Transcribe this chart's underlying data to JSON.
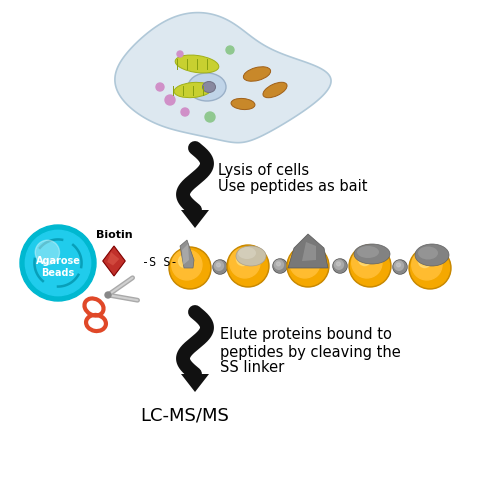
{
  "bg_color": "#ffffff",
  "arrow1_text_line1": "Lysis of cells",
  "arrow1_text_line2": "Use peptides as bait",
  "arrow2_text_line1": "Elute proteins bound to",
  "arrow2_text_line2": "peptides by cleaving the",
  "arrow2_text_line3": "SS linker",
  "lcms_text": "LC-MS/MS",
  "biotin_label": "Biotin",
  "agarose_label": "Agarose\nBeads",
  "ss_text": "-S S-",
  "text_color": "#000000",
  "arrow_color": "#111111",
  "cell_fill": "#dde8f0",
  "cell_edge": "#b0c8d8",
  "nucleus_fill": "#c0d4e8",
  "nucleolus_fill": "#8888a0",
  "mito_fill": "#c8882a",
  "chloro_fill": "#c8d030",
  "chloro_line": "#88a010",
  "organelle_pink": "#d090c8",
  "organelle_green": "#90c890",
  "bead_outer": "#00b8d0",
  "bead_inner": "#20ccec",
  "bead_line": "#0090a8",
  "biotin_red": "#c0302a",
  "gold_dark": "#c88800",
  "gold_mid": "#f5a800",
  "gold_light": "#ffbc30",
  "gold_hl": "#ffe080",
  "gray_dark": "#505050",
  "gray_mid": "#888888",
  "gray_light": "#aaaaaa",
  "gray_hl": "#cccccc",
  "scissors_blade": "#aaaaaa",
  "scissors_handle": "#e04828",
  "protein_light": "#c8c0a8",
  "protein_dark": "#808888"
}
